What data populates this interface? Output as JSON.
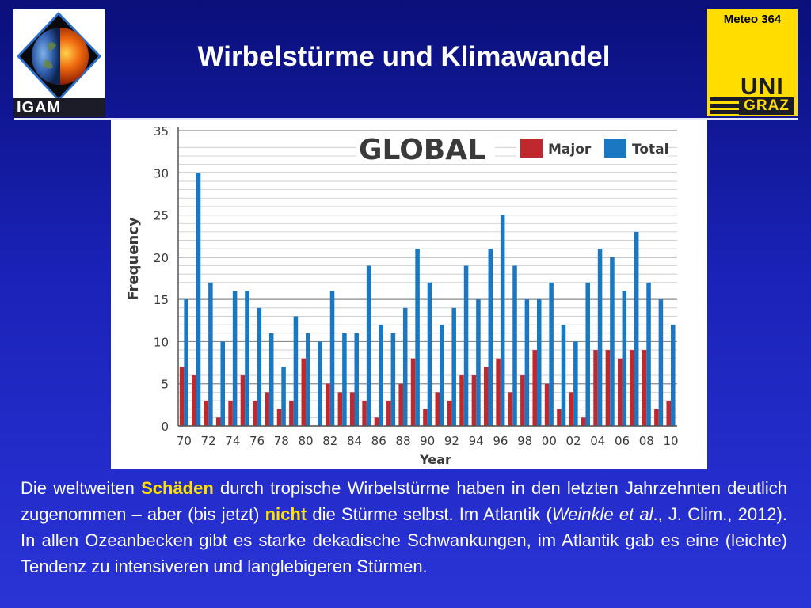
{
  "header": {
    "title": "Wirbelstürme und Klimawandel",
    "left_logo": {
      "text": "IGAM",
      "icon": "earth-sun-diamond-icon"
    },
    "right_logo": {
      "course": "Meteo 364",
      "uni": "UNI",
      "graz": "GRAZ"
    }
  },
  "colors": {
    "major": "#c0282e",
    "total": "#1a78c2",
    "highlight": "#ffe100"
  },
  "chart_data": {
    "type": "bar",
    "title": "GLOBAL",
    "xlabel": "Year",
    "ylabel": "Frequency",
    "ylim": [
      0,
      35
    ],
    "yticks": [
      0,
      5,
      10,
      15,
      20,
      25,
      30,
      35
    ],
    "legend": {
      "placement": "top-right",
      "entries": [
        "Major",
        "Total"
      ]
    },
    "grid": true,
    "x_tick_labels": [
      "70",
      "72",
      "74",
      "76",
      "78",
      "80",
      "82",
      "84",
      "86",
      "88",
      "90",
      "92",
      "94",
      "96",
      "98",
      "00",
      "02",
      "04",
      "06",
      "08",
      "10"
    ],
    "categories": [
      "1970",
      "1971",
      "1972",
      "1973",
      "1974",
      "1975",
      "1976",
      "1977",
      "1978",
      "1979",
      "1980",
      "1981",
      "1982",
      "1983",
      "1984",
      "1985",
      "1986",
      "1987",
      "1988",
      "1989",
      "1990",
      "1991",
      "1992",
      "1993",
      "1994",
      "1995",
      "1996",
      "1997",
      "1998",
      "1999",
      "2000",
      "2001",
      "2002",
      "2003",
      "2004",
      "2005",
      "2006",
      "2007",
      "2008",
      "2009",
      "2010"
    ],
    "series": [
      {
        "name": "Major",
        "values": [
          7,
          6,
          3,
          1,
          3,
          6,
          3,
          4,
          2,
          3,
          8,
          0,
          5,
          4,
          4,
          3,
          1,
          3,
          5,
          8,
          2,
          4,
          3,
          6,
          6,
          7,
          8,
          4,
          6,
          9,
          5,
          2,
          4,
          1,
          9,
          9,
          8,
          9,
          9,
          2,
          3
        ]
      },
      {
        "name": "Total",
        "values": [
          15,
          30,
          17,
          10,
          16,
          16,
          14,
          11,
          7,
          13,
          11,
          10,
          16,
          11,
          11,
          19,
          12,
          11,
          14,
          21,
          17,
          12,
          14,
          19,
          15,
          21,
          25,
          19,
          15,
          15,
          17,
          12,
          10,
          17,
          21,
          20,
          16,
          23,
          17,
          15,
          12
        ]
      }
    ]
  },
  "caption": {
    "p1": "Die weltweiten ",
    "h1": "Schäden",
    "p2": " durch tropische Wirbelstürme haben in den letzten Jahrzehnten deutlich zugenommen – aber (bis jetzt) ",
    "h2": "nicht",
    "p3": " die Stürme selbst. Im Atlantik (",
    "cite": "Weinkle et al",
    "p4": "., J. Clim., 2012). In allen Ozeanbecken gibt es starke dekadische Schwankungen, im Atlantik gab es eine (leichte) Tendenz zu intensiveren und langlebigeren Stürmen."
  }
}
